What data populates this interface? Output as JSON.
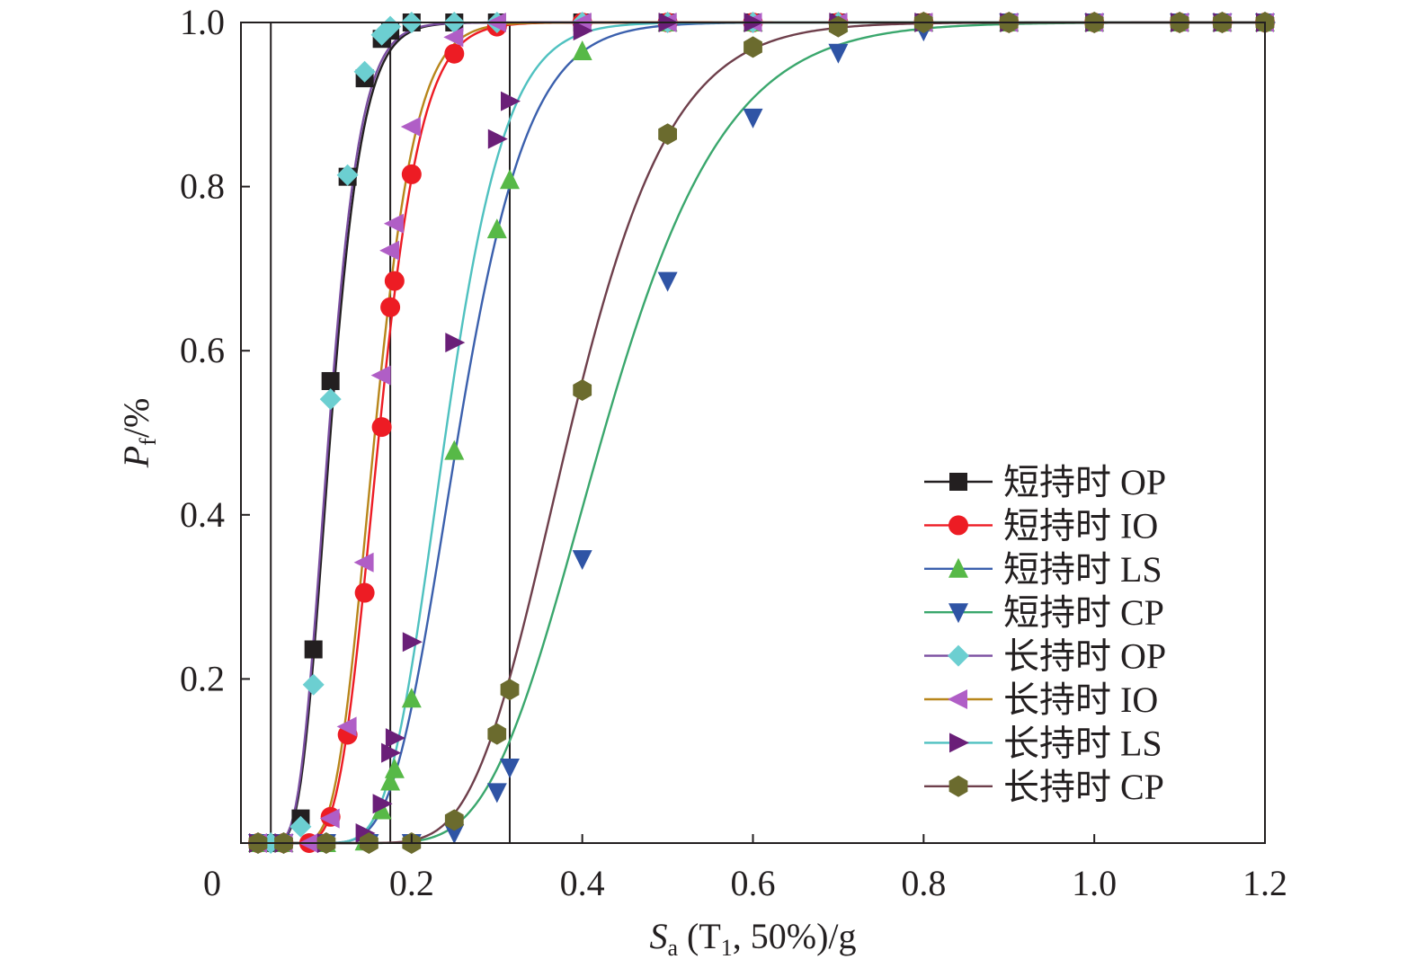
{
  "chart_data": {
    "type": "line",
    "xlabel": {
      "main": "S",
      "sub": "a",
      "rest": " (T",
      "sub2": "1",
      "tail": ", 50%)/g"
    },
    "ylabel": {
      "main": "P",
      "sub": "f",
      "tail": "/%"
    },
    "xlim": [
      0,
      1.2
    ],
    "ylim": [
      0,
      1.0
    ],
    "xticks": [
      0,
      0.2,
      0.4,
      0.6,
      0.8,
      1.0,
      1.2
    ],
    "xtick_labels": [
      "0",
      "0.2",
      "0.4",
      "0.6",
      "0.8",
      "1.0",
      "1.2"
    ],
    "yticks": [
      0.2,
      0.4,
      0.6,
      0.8,
      1.0
    ],
    "ytick_labels": [
      "0.2",
      "0.4",
      "0.6",
      "0.8",
      "1.0"
    ],
    "grid": false,
    "legend_position": "bottom-right",
    "reference_lines_x": [
      0.035,
      0.175,
      0.315
    ],
    "series": [
      {
        "name": "短持时 OP",
        "marker": "square",
        "marker_color": "#231f20",
        "line_color": "#231f20",
        "fit": {
          "median": 0.105,
          "beta": 0.28
        },
        "points": [
          [
            0.02,
            0
          ],
          [
            0.035,
            0
          ],
          [
            0.05,
            0
          ],
          [
            0.07,
            0.03
          ],
          [
            0.085,
            0.236
          ],
          [
            0.105,
            0.563
          ],
          [
            0.125,
            0.812
          ],
          [
            0.145,
            0.932
          ],
          [
            0.165,
            0.98
          ],
          [
            0.175,
            0.99
          ],
          [
            0.2,
            1.0
          ],
          [
            0.25,
            1.0
          ],
          [
            0.3,
            1.0
          ],
          [
            0.4,
            1.0
          ],
          [
            0.5,
            1.0
          ],
          [
            0.6,
            1.0
          ],
          [
            0.7,
            1.0
          ],
          [
            0.8,
            1.0
          ],
          [
            0.9,
            1.0
          ],
          [
            1.0,
            1.0
          ],
          [
            1.1,
            1.0
          ],
          [
            1.15,
            1.0
          ],
          [
            1.2,
            1.0
          ]
        ]
      },
      {
        "name": "短持时 IO",
        "marker": "circle",
        "marker_color": "#ed1c24",
        "line_color": "#ed1c24",
        "fit": {
          "median": 0.162,
          "beta": 0.24
        },
        "points": [
          [
            0.02,
            0
          ],
          [
            0.05,
            0
          ],
          [
            0.08,
            0
          ],
          [
            0.105,
            0.032
          ],
          [
            0.125,
            0.132
          ],
          [
            0.145,
            0.305
          ],
          [
            0.165,
            0.507
          ],
          [
            0.175,
            0.653
          ],
          [
            0.18,
            0.685
          ],
          [
            0.2,
            0.815
          ],
          [
            0.25,
            0.962
          ],
          [
            0.3,
            0.995
          ],
          [
            0.4,
            1.0
          ],
          [
            0.5,
            1.0
          ],
          [
            0.6,
            1.0
          ],
          [
            0.7,
            1.0
          ],
          [
            0.8,
            1.0
          ],
          [
            0.9,
            1.0
          ],
          [
            1.0,
            1.0
          ],
          [
            1.1,
            1.0
          ],
          [
            1.15,
            1.0
          ],
          [
            1.2,
            1.0
          ]
        ]
      },
      {
        "name": "短持时 LS",
        "marker": "triangle-up",
        "marker_color": "#57b947",
        "line_color": "#3b60ad",
        "fit": {
          "median": 0.255,
          "beta": 0.25
        },
        "points": [
          [
            0.02,
            0
          ],
          [
            0.05,
            0
          ],
          [
            0.1,
            0
          ],
          [
            0.145,
            0.002
          ],
          [
            0.165,
            0.04
          ],
          [
            0.175,
            0.075
          ],
          [
            0.18,
            0.09
          ],
          [
            0.2,
            0.176
          ],
          [
            0.25,
            0.478
          ],
          [
            0.3,
            0.748
          ],
          [
            0.315,
            0.808
          ],
          [
            0.4,
            0.965
          ],
          [
            0.5,
            1.0
          ],
          [
            0.6,
            1.0
          ],
          [
            0.7,
            1.0
          ],
          [
            0.8,
            1.0
          ],
          [
            0.9,
            1.0
          ],
          [
            1.0,
            1.0
          ],
          [
            1.1,
            1.0
          ],
          [
            1.15,
            1.0
          ],
          [
            1.2,
            1.0
          ]
        ]
      },
      {
        "name": "短持时 CP",
        "marker": "triangle-down",
        "marker_color": "#2f54a5",
        "line_color": "#3aa76d",
        "fit": {
          "median": 0.425,
          "beta": 0.26
        },
        "points": [
          [
            0.02,
            0
          ],
          [
            0.05,
            0
          ],
          [
            0.1,
            0
          ],
          [
            0.15,
            0
          ],
          [
            0.2,
            0
          ],
          [
            0.25,
            0.012
          ],
          [
            0.3,
            0.062
          ],
          [
            0.315,
            0.092
          ],
          [
            0.4,
            0.346
          ],
          [
            0.5,
            0.685
          ],
          [
            0.6,
            0.884
          ],
          [
            0.7,
            0.963
          ],
          [
            0.8,
            0.99
          ],
          [
            0.9,
            1.0
          ],
          [
            1.0,
            1.0
          ],
          [
            1.1,
            1.0
          ],
          [
            1.15,
            1.0
          ],
          [
            1.2,
            1.0
          ]
        ]
      },
      {
        "name": "长持时 OP",
        "marker": "diamond",
        "marker_color": "#6ccfd1",
        "line_color": "#7a4ea0",
        "fit": {
          "median": 0.103,
          "beta": 0.28
        },
        "points": [
          [
            0.02,
            0
          ],
          [
            0.035,
            0
          ],
          [
            0.05,
            0
          ],
          [
            0.07,
            0.02
          ],
          [
            0.085,
            0.193
          ],
          [
            0.105,
            0.541
          ],
          [
            0.125,
            0.814
          ],
          [
            0.145,
            0.94
          ],
          [
            0.165,
            0.985
          ],
          [
            0.175,
            0.995
          ],
          [
            0.2,
            1.0
          ],
          [
            0.25,
            1.0
          ],
          [
            0.3,
            1.0
          ],
          [
            0.4,
            1.0
          ],
          [
            0.5,
            1.0
          ],
          [
            0.6,
            1.0
          ],
          [
            0.7,
            1.0
          ],
          [
            0.8,
            1.0
          ],
          [
            0.9,
            1.0
          ],
          [
            1.0,
            1.0
          ],
          [
            1.1,
            1.0
          ],
          [
            1.15,
            1.0
          ],
          [
            1.2,
            1.0
          ]
        ]
      },
      {
        "name": "长持时 IO",
        "marker": "triangle-left",
        "marker_color": "#b05ec6",
        "line_color": "#b8861b",
        "fit": {
          "median": 0.157,
          "beta": 0.24
        },
        "points": [
          [
            0.02,
            0
          ],
          [
            0.05,
            0
          ],
          [
            0.08,
            0
          ],
          [
            0.105,
            0.03
          ],
          [
            0.125,
            0.142
          ],
          [
            0.145,
            0.342
          ],
          [
            0.165,
            0.57
          ],
          [
            0.175,
            0.722
          ],
          [
            0.18,
            0.755
          ],
          [
            0.2,
            0.873
          ],
          [
            0.25,
            0.982
          ],
          [
            0.3,
            1.0
          ],
          [
            0.4,
            1.0
          ],
          [
            0.5,
            1.0
          ],
          [
            0.6,
            1.0
          ],
          [
            0.7,
            1.0
          ],
          [
            0.8,
            1.0
          ],
          [
            0.9,
            1.0
          ],
          [
            1.0,
            1.0
          ],
          [
            1.1,
            1.0
          ],
          [
            1.15,
            1.0
          ],
          [
            1.2,
            1.0
          ]
        ]
      },
      {
        "name": "长持时 LS",
        "marker": "triangle-right",
        "marker_color": "#6a1f78",
        "line_color": "#4fc1c0",
        "fit": {
          "median": 0.24,
          "beta": 0.23
        },
        "points": [
          [
            0.02,
            0
          ],
          [
            0.05,
            0
          ],
          [
            0.1,
            0
          ],
          [
            0.145,
            0.012
          ],
          [
            0.165,
            0.048
          ],
          [
            0.175,
            0.11
          ],
          [
            0.18,
            0.128
          ],
          [
            0.2,
            0.245
          ],
          [
            0.25,
            0.61
          ],
          [
            0.3,
            0.858
          ],
          [
            0.315,
            0.904
          ],
          [
            0.4,
            0.99
          ],
          [
            0.5,
            1.0
          ],
          [
            0.6,
            1.0
          ],
          [
            0.7,
            1.0
          ],
          [
            0.8,
            1.0
          ],
          [
            0.9,
            1.0
          ],
          [
            1.0,
            1.0
          ],
          [
            1.1,
            1.0
          ],
          [
            1.15,
            1.0
          ],
          [
            1.2,
            1.0
          ]
        ]
      },
      {
        "name": "长持时 CP",
        "marker": "hexagon",
        "marker_color": "#6b6b2e",
        "line_color": "#6e3f4b",
        "fit": {
          "median": 0.385,
          "beta": 0.24
        },
        "points": [
          [
            0.02,
            0
          ],
          [
            0.05,
            0
          ],
          [
            0.1,
            0
          ],
          [
            0.15,
            0
          ],
          [
            0.2,
            0
          ],
          [
            0.25,
            0.028
          ],
          [
            0.3,
            0.133
          ],
          [
            0.315,
            0.187
          ],
          [
            0.4,
            0.552
          ],
          [
            0.5,
            0.864
          ],
          [
            0.6,
            0.97
          ],
          [
            0.7,
            0.995
          ],
          [
            0.8,
            1.0
          ],
          [
            0.9,
            1.0
          ],
          [
            1.0,
            1.0
          ],
          [
            1.1,
            1.0
          ],
          [
            1.15,
            1.0
          ],
          [
            1.2,
            1.0
          ]
        ]
      }
    ]
  }
}
